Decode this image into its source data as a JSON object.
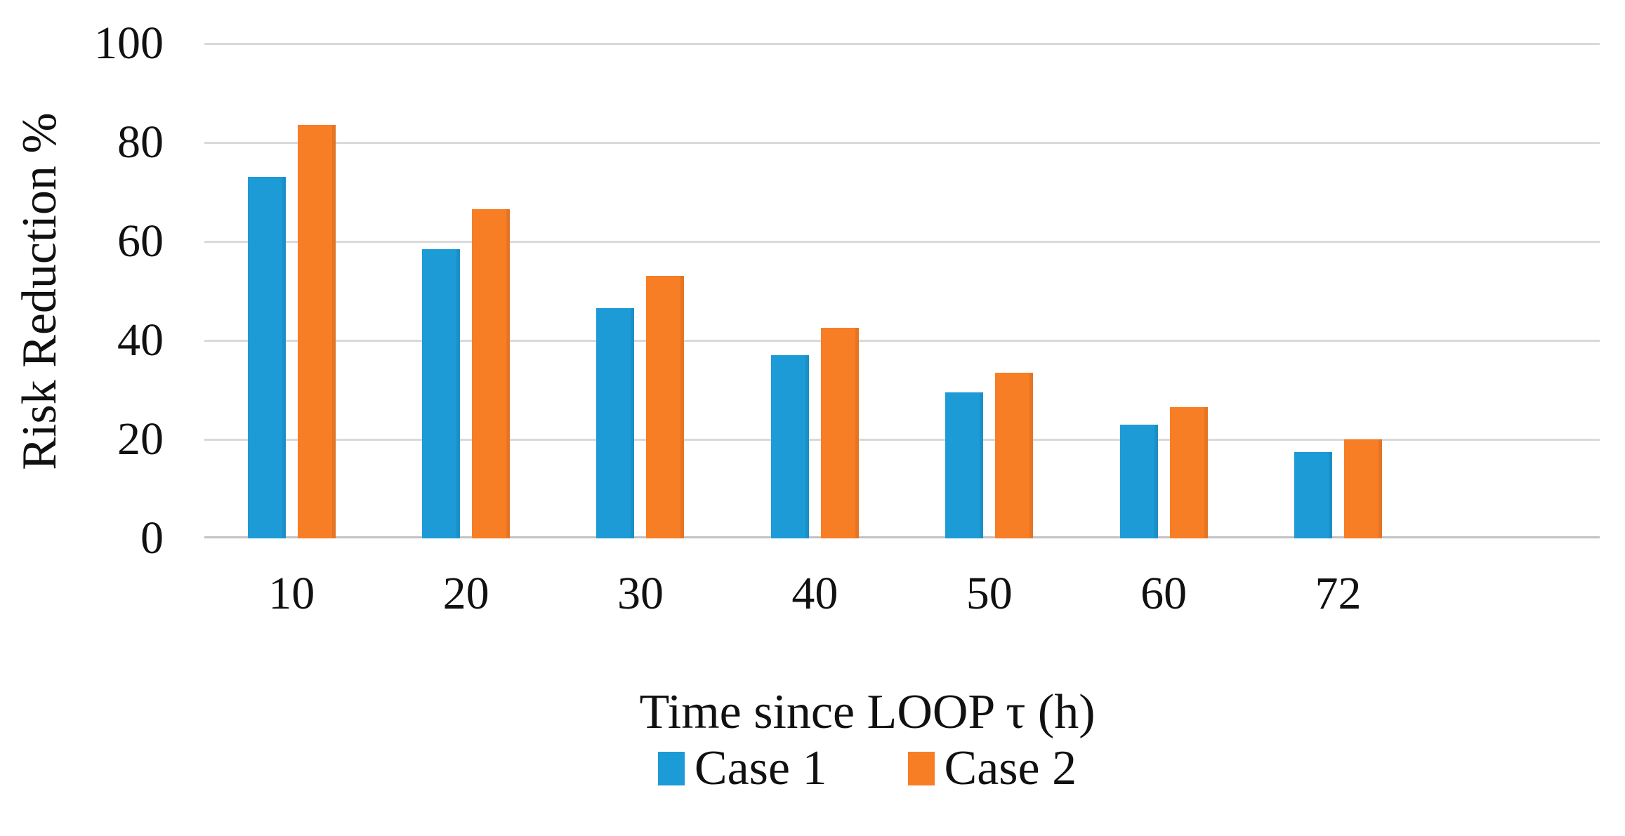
{
  "chart_data": {
    "type": "bar",
    "title": "",
    "categories": [
      "10",
      "20",
      "30",
      "40",
      "50",
      "60",
      "72"
    ],
    "series": [
      {
        "name": "Case 1",
        "color": "#1d9bd7",
        "values": [
          73,
          58.5,
          46.5,
          37,
          29.5,
          23,
          17.5
        ]
      },
      {
        "name": "Case 2",
        "color": "#f87e26",
        "values": [
          83.5,
          66.5,
          53,
          42.5,
          33.5,
          26.5,
          20
        ]
      }
    ],
    "xlabel": "Time since LOOP τ (h)",
    "ylabel": "Risk Reduction %",
    "ylim": [
      0,
      100
    ],
    "yticks": [
      0,
      20,
      40,
      60,
      80,
      100
    ],
    "grid": true,
    "gridline_color": "#d9d9d9",
    "axis_line_color": "#c2c2c2",
    "legend_position": "bottom",
    "extra_empty_slots": 1
  }
}
